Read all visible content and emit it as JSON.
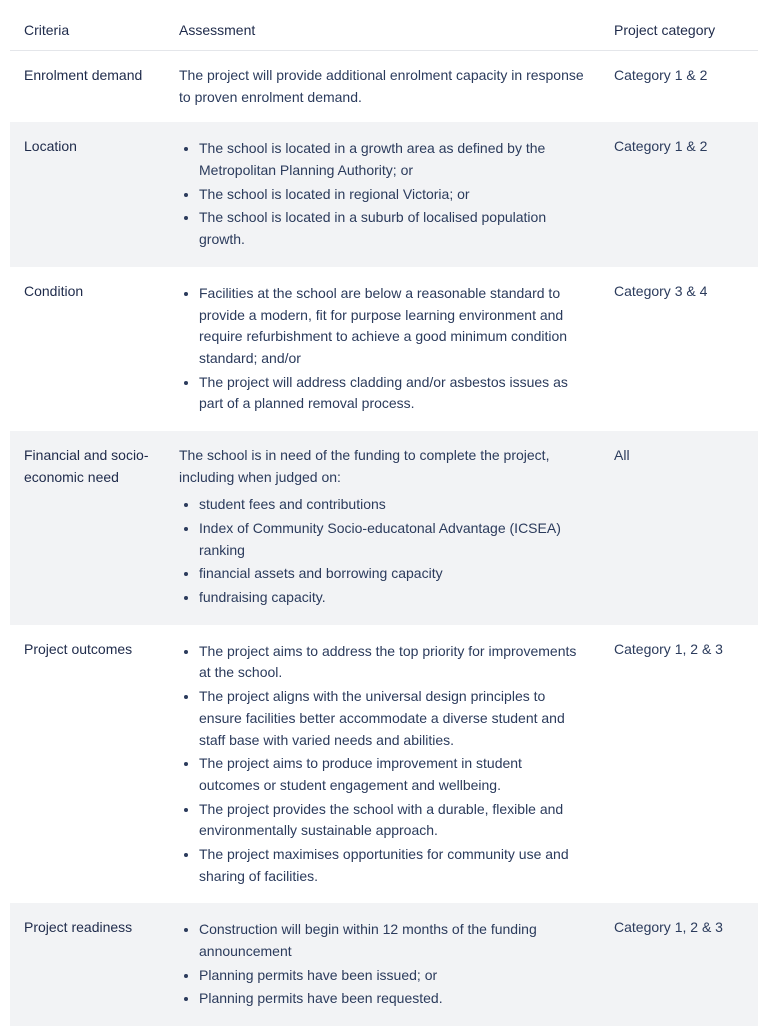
{
  "columns": {
    "criteria": "Criteria",
    "assessment": "Assessment",
    "category": "Project category"
  },
  "rows": [
    {
      "criteria": "Enrolment demand",
      "assessment_text": "The project will provide additional enrolment capacity in response to proven enrolment demand.",
      "category": "Category 1 & 2"
    },
    {
      "criteria": "Location",
      "bullets": [
        "The school is located in a growth area as defined by the Metropolitan Planning Authority; or",
        "The school is located in regional Victoria; or",
        "The school is located in a suburb of localised population growth."
      ],
      "category": "Category 1 & 2"
    },
    {
      "criteria": "Condition",
      "bullets": [
        "Facilities at the school are below a reasonable standard to provide a modern, fit for purpose learning environment and require refurbishment to achieve a good minimum condition standard; and/or",
        "The project will address cladding and/or asbestos issues as part of a planned removal process."
      ],
      "category": "Category 3 & 4"
    },
    {
      "criteria": "Financial and socio-economic need",
      "lead": "The school is in need of the funding to complete the project, including when judged on:",
      "bullets": [
        "student fees and contributions",
        "Index of Community Socio-educatonal Advantage (ICSEA) ranking",
        "financial assets and borrowing capacity",
        "fundraising capacity."
      ],
      "category": "All"
    },
    {
      "criteria": "Project outcomes",
      "bullets": [
        "The project aims to address the top priority for improvements at the school.",
        "The project aligns with the universal design principles to ensure facilities better accommodate a diverse student and staff base with varied needs and abilities.",
        "The project aims to produce improvement in student outcomes or student engagement and wellbeing.",
        "The project provides the school with a durable, flexible and environmentally sustainable approach.",
        "The project maximises opportunities for community use and sharing of facilities."
      ],
      "category": "Category 1, 2 & 3"
    },
    {
      "criteria": "Project readiness",
      "bullets": [
        "Construction will begin within 12 months of the funding announcement",
        "Planning permits have been issued; or",
        "Planning permits have been requested."
      ],
      "category": "Category 1, 2 & 3"
    }
  ],
  "row_shading": [
    "plain",
    "shaded",
    "plain",
    "shaded",
    "plain",
    "shaded"
  ]
}
